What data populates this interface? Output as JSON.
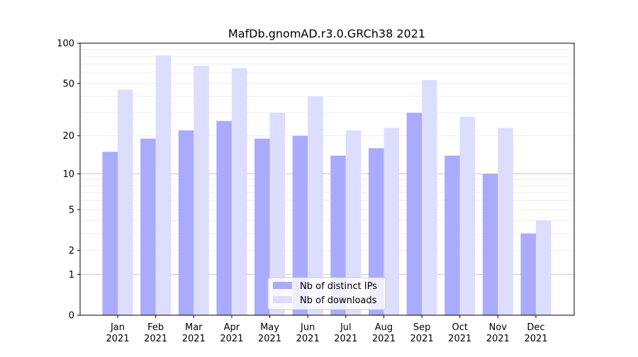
{
  "chart_data": {
    "type": "bar",
    "title": "MafDb.gnomAD.r3.0.GRCh38 2021",
    "xlabel": "",
    "ylabel": "",
    "yscale": "symlog",
    "ylim": [
      0,
      100
    ],
    "yticks": [
      0,
      1,
      2,
      5,
      10,
      20,
      50,
      100
    ],
    "ytick_labels": [
      "0",
      "1",
      "2",
      "5",
      "10",
      "20",
      "50",
      "100"
    ],
    "grid": true,
    "legend_position": "bottom-center",
    "categories": [
      "Jan\n2021",
      "Feb\n2021",
      "Mar\n2021",
      "Apr\n2021",
      "May\n2021",
      "Jun\n2021",
      "Jul\n2021",
      "Aug\n2021",
      "Sep\n2021",
      "Oct\n2021",
      "Nov\n2021",
      "Dec\n2021"
    ],
    "series": [
      {
        "name": "Nb of distinct IPs",
        "color": "#aaaaff",
        "values": [
          15,
          19,
          22,
          26,
          19,
          20,
          14,
          16,
          30,
          14,
          10,
          3
        ]
      },
      {
        "name": "Nb of downloads",
        "color": "#ddddff",
        "values": [
          45,
          81,
          68,
          65,
          30,
          40,
          22,
          23,
          53,
          28,
          23,
          4
        ]
      }
    ]
  }
}
